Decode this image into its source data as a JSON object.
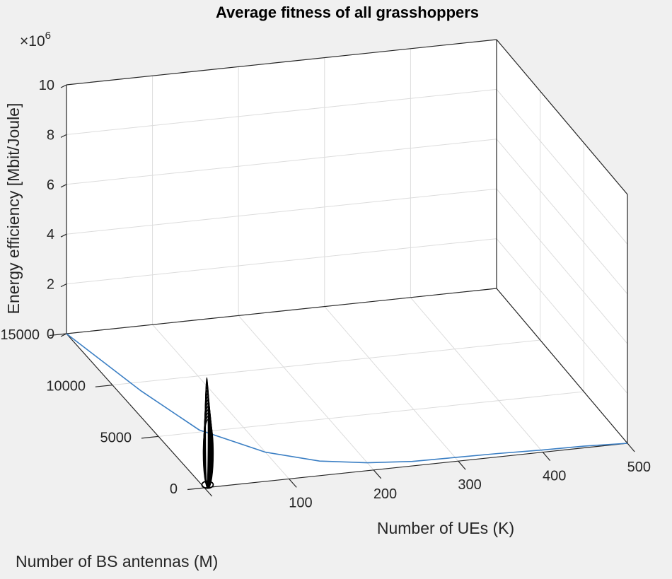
{
  "figure": {
    "background": "#f0f0f0",
    "axes_background": "#ffffff"
  },
  "chart_data": {
    "type": "surface3d",
    "title": "Average fitness of all grasshoppers",
    "xlabel": "Number of UEs (K)",
    "ylabel": "Number of BS antennas (M)",
    "zlabel": "Energy efficiency [Mbit/Joule]",
    "z_exponent_label": "×10",
    "z_exponent_power": "6",
    "xlim": [
      0,
      500
    ],
    "ylim": [
      0,
      15000
    ],
    "zlim": [
      0,
      10000000
    ],
    "xticks": [
      0,
      100,
      200,
      300,
      400,
      500
    ],
    "xtick_labels": [
      "",
      "100",
      "200",
      "300",
      "400",
      "500"
    ],
    "yticks": [
      0,
      5000,
      10000,
      15000
    ],
    "ytick_labels": [
      "0",
      "5000",
      "10000",
      "15000"
    ],
    "zticks": [
      0,
      2,
      4,
      6,
      8,
      10
    ],
    "zscale": 1000000,
    "grid": true,
    "colors": {
      "curve": "#3b7fc4",
      "spike": "#000000",
      "axis": "#262626",
      "grid": "#dcdcdc"
    },
    "series": [
      {
        "kind": "line3d",
        "color": "#3b7fc4",
        "points": [
          {
            "K": 0,
            "M": 15000,
            "z": 0
          },
          {
            "K": 25,
            "M": 9200,
            "z": 0
          },
          {
            "K": 50,
            "M": 5200,
            "z": 0
          },
          {
            "K": 100,
            "M": 2600,
            "z": 0
          },
          {
            "K": 150,
            "M": 1300,
            "z": 0
          },
          {
            "K": 200,
            "M": 700,
            "z": 0
          },
          {
            "K": 250,
            "M": 400,
            "z": 0
          },
          {
            "K": 300,
            "M": 350,
            "z": 0
          },
          {
            "K": 350,
            "M": 300,
            "z": 0
          },
          {
            "K": 400,
            "M": 200,
            "z": 0
          },
          {
            "K": 450,
            "M": 150,
            "z": 0
          },
          {
            "K": 500,
            "M": 0,
            "z": 0
          }
        ]
      },
      {
        "kind": "spike",
        "color": "#000000",
        "K": 5,
        "M": 120,
        "z_peak": 4300000,
        "rings": 14
      }
    ]
  }
}
